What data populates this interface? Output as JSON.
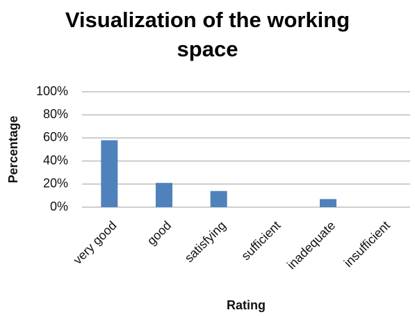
{
  "chart_data": {
    "type": "bar",
    "title": "Visualization of the working space",
    "x_label": "Rating",
    "y_label": "Percentage",
    "categories": [
      "very good",
      "good",
      "satisfying",
      "sufficient",
      "inadequate",
      "insufficient"
    ],
    "values": [
      58,
      21,
      14,
      0,
      7,
      0
    ],
    "color": "#4f81bd",
    "ylim": [
      0,
      100
    ],
    "yticks": [
      {
        "value": 0,
        "label": "0%"
      },
      {
        "value": 20,
        "label": "20%"
      },
      {
        "value": 40,
        "label": "40%"
      },
      {
        "value": 60,
        "label": "60%"
      },
      {
        "value": 80,
        "label": "80%"
      },
      {
        "value": 100,
        "label": "100%"
      }
    ],
    "grid": true
  }
}
